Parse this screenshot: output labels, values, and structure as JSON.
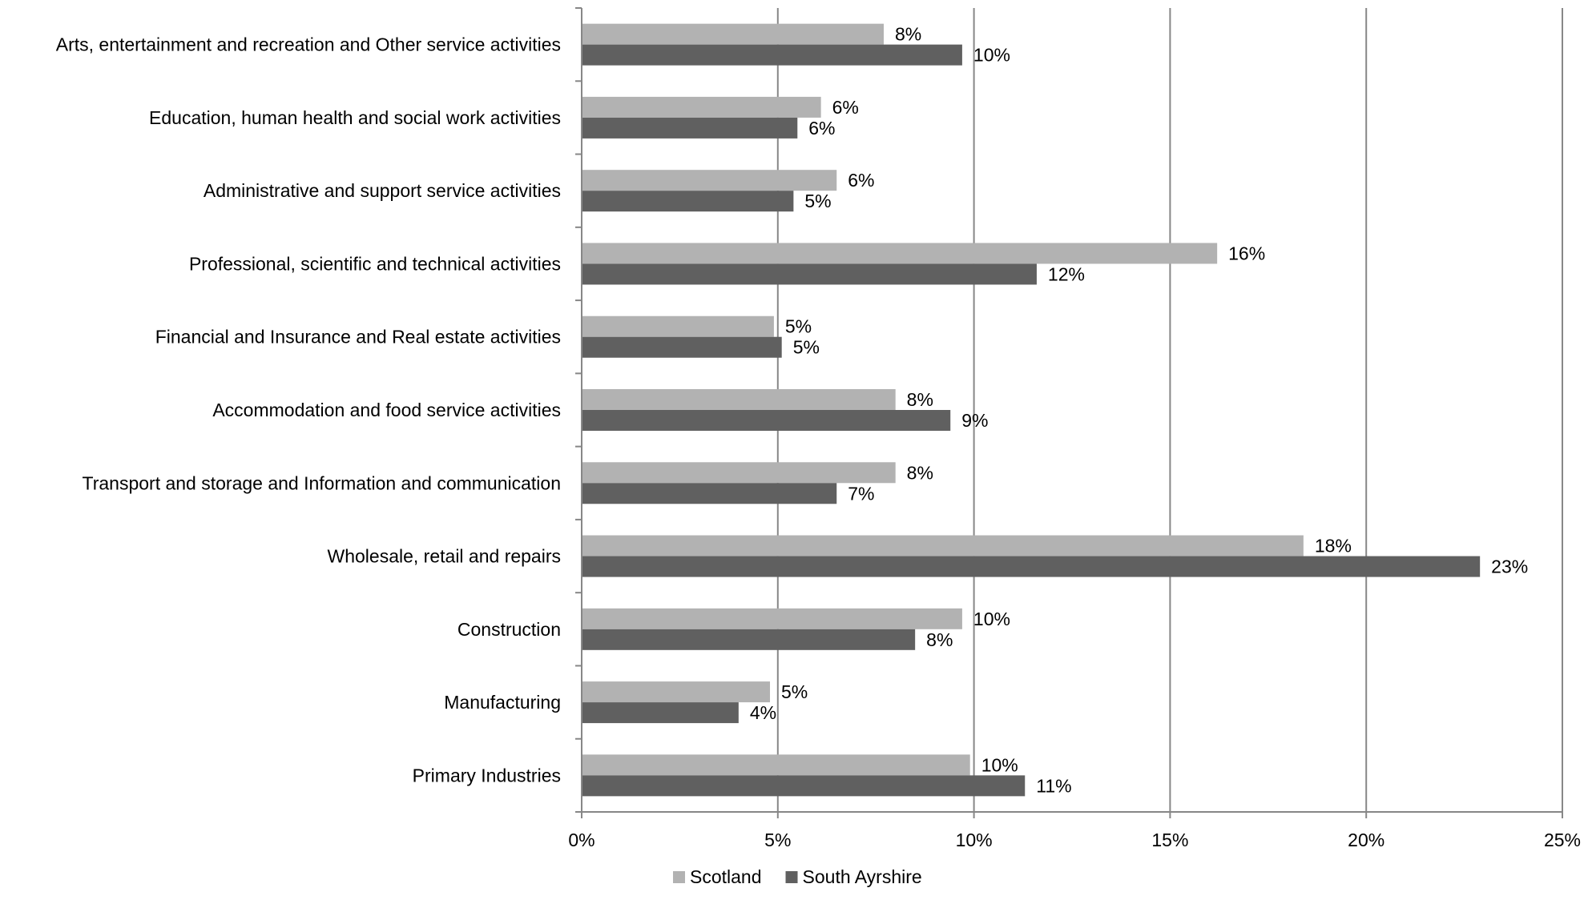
{
  "chart_data": {
    "type": "bar",
    "orientation": "horizontal",
    "categories": [
      "Arts, entertainment and recreation and Other service activities",
      "Education, human health and social work activities",
      "Administrative and support service activities",
      "Professional, scientific and technical activities",
      "Financial and Insurance and Real estate activities",
      "Accommodation and food service activities",
      "Transport and storage and Information and communication",
      "Wholesale, retail and repairs",
      "Construction",
      "Manufacturing",
      "Primary Industries"
    ],
    "series": [
      {
        "name": "Scotland",
        "color": "#b2b2b2",
        "values": [
          7.7,
          6.1,
          6.5,
          16.2,
          4.9,
          8.0,
          8.0,
          18.4,
          9.7,
          4.8,
          9.9
        ],
        "labels": [
          "8%",
          "6%",
          "6%",
          "16%",
          "5%",
          "8%",
          "8%",
          "18%",
          "10%",
          "5%",
          "10%"
        ]
      },
      {
        "name": "South Ayrshire",
        "color": "#606060",
        "values": [
          9.7,
          5.5,
          5.4,
          11.6,
          5.1,
          9.4,
          6.5,
          22.9,
          8.5,
          4.0,
          11.3
        ],
        "labels": [
          "10%",
          "6%",
          "5%",
          "12%",
          "5%",
          "9%",
          "7%",
          "23%",
          "8%",
          "4%",
          "11%"
        ]
      }
    ],
    "xlim": [
      0,
      25
    ],
    "x_ticks": [
      "0%",
      "5%",
      "10%",
      "15%",
      "20%",
      "25%"
    ],
    "grid": "vertical",
    "legend": "bottom",
    "title": "",
    "xlabel": "",
    "ylabel": ""
  }
}
